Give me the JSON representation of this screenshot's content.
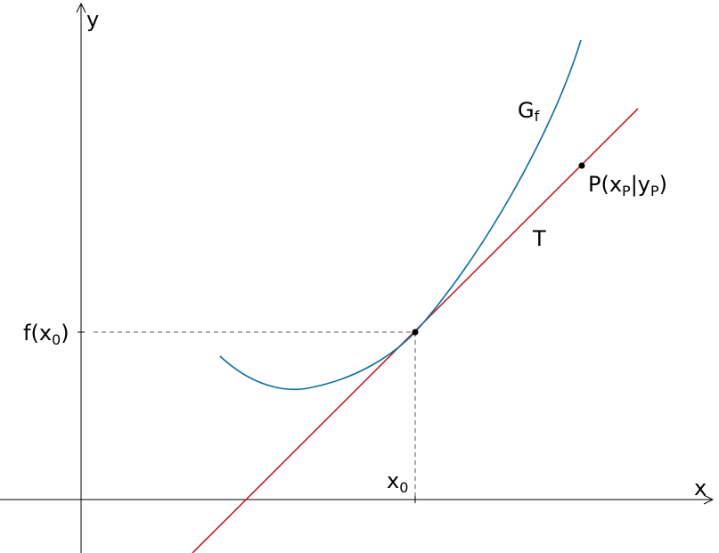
{
  "axes": {
    "x_label": "x",
    "y_label": "y"
  },
  "graph": {
    "label_main": "G",
    "label_sub": "f",
    "color": "#0d6e9c"
  },
  "tangent": {
    "label": "T",
    "color": "#c0202a"
  },
  "point_x0": {
    "x_main": "x",
    "x_sub": "0",
    "y_prefix": "f(x",
    "y_sub": "0",
    "y_suffix": ")"
  },
  "point_p": {
    "p_open": "P(x",
    "p_sub1": "P",
    "p_mid": "|y",
    "p_sub2": "P",
    "p_close": ")"
  }
}
